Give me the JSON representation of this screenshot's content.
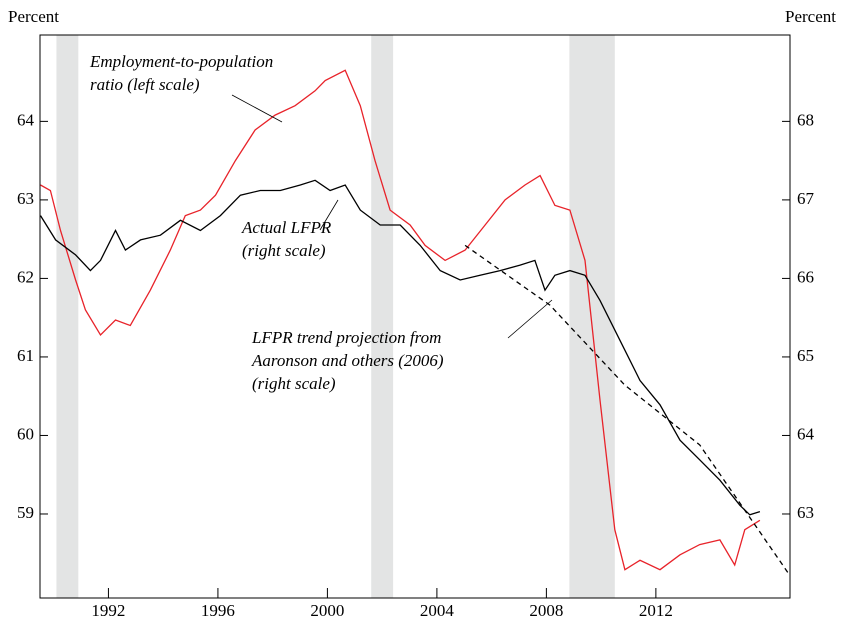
{
  "chart_data": {
    "type": "line",
    "left_axis_label": "Percent",
    "right_axis_label": "Percent",
    "xlim": [
      1989.5,
      2016.9
    ],
    "xticks": [
      1992,
      1996,
      2000,
      2004,
      2008,
      2012
    ],
    "ylim": [
      57.93,
      65.1
    ],
    "yticks": [
      59,
      60,
      61,
      62,
      63,
      64
    ],
    "y2lim": [
      61.93,
      69.1
    ],
    "y2ticks": [
      63,
      64,
      65,
      66,
      67,
      68
    ],
    "shaded_periods": [
      [
        1990.1,
        1990.9
      ],
      [
        2001.6,
        2002.4
      ],
      [
        2008.84,
        2010.5
      ]
    ],
    "shade_color": "#e3e4e4",
    "series": [
      {
        "name": "Employment-to-population ratio (left scale)",
        "color": "#e8232a",
        "dash": false,
        "axis": "y",
        "x": [
          1989.52,
          1989.88,
          1990.25,
          1990.8,
          1991.16,
          1991.71,
          1992.26,
          1992.8,
          1993.53,
          1994.26,
          1994.81,
          1995.36,
          1995.91,
          1996.64,
          1997.36,
          1998.09,
          1998.82,
          1999.55,
          1999.92,
          2000.65,
          2001.2,
          2001.74,
          2002.29,
          2003.02,
          2003.57,
          2004.3,
          2005.03,
          2005.76,
          2006.49,
          2007.22,
          2007.77,
          2008.31,
          2008.86,
          2009.41,
          2009.96,
          2010.5,
          2010.87,
          2011.42,
          2012.15,
          2012.88,
          2013.6,
          2014.34,
          2014.88,
          2015.25,
          2015.8
        ],
        "values": [
          63.19,
          63.12,
          62.61,
          61.98,
          61.6,
          61.28,
          61.47,
          61.4,
          61.85,
          62.36,
          62.8,
          62.87,
          63.06,
          63.5,
          63.89,
          64.08,
          64.2,
          64.39,
          64.52,
          64.65,
          64.2,
          63.5,
          62.87,
          62.68,
          62.42,
          62.23,
          62.36,
          62.68,
          63.0,
          63.19,
          63.31,
          62.93,
          62.87,
          62.23,
          60.45,
          58.8,
          58.29,
          58.41,
          58.29,
          58.48,
          58.61,
          58.67,
          58.35,
          58.8,
          58.92
        ]
      },
      {
        "name": "Actual LFPR (right scale)",
        "color": "#000000",
        "dash": false,
        "axis": "y2",
        "x": [
          1989.52,
          1990.07,
          1990.8,
          1991.34,
          1991.71,
          1992.26,
          1992.62,
          1993.17,
          1993.9,
          1994.63,
          1995.36,
          1996.09,
          1996.82,
          1997.55,
          1998.28,
          1999.01,
          1999.55,
          2000.1,
          2000.65,
          2001.2,
          2001.93,
          2002.66,
          2003.39,
          2004.12,
          2004.85,
          2005.58,
          2006.31,
          2007.04,
          2007.58,
          2007.95,
          2008.31,
          2008.86,
          2009.41,
          2009.96,
          2010.69,
          2011.42,
          2012.15,
          2012.88,
          2013.6,
          2014.34,
          2015.07,
          2015.43,
          2015.8
        ],
        "values": [
          66.8,
          66.49,
          66.3,
          66.1,
          66.23,
          66.61,
          66.36,
          66.49,
          66.55,
          66.74,
          66.61,
          66.8,
          67.06,
          67.12,
          67.12,
          67.19,
          67.25,
          67.12,
          67.19,
          66.87,
          66.68,
          66.68,
          66.42,
          66.1,
          65.98,
          66.04,
          66.1,
          66.17,
          66.23,
          65.85,
          66.04,
          66.1,
          66.04,
          65.72,
          65.21,
          64.7,
          64.39,
          63.94,
          63.69,
          63.43,
          63.11,
          62.99,
          63.03
        ]
      },
      {
        "name": "LFPR trend projection from Aaronson and others (2006) (right scale)",
        "color": "#000000",
        "dash": true,
        "axis": "y2",
        "x": [
          2005.03,
          2008.13,
          2010.87,
          2013.6,
          2016.89
        ],
        "values": [
          66.42,
          65.66,
          64.64,
          63.88,
          62.22
        ]
      }
    ],
    "annotations": [
      {
        "lines": [
          "Employment-to-population",
          "ratio (left scale)"
        ]
      },
      {
        "lines": [
          "Actual LFPR",
          "(right scale)"
        ]
      },
      {
        "lines": [
          "LFPR trend projection from",
          "Aaronson and others (2006)",
          "(right scale)"
        ]
      }
    ]
  }
}
